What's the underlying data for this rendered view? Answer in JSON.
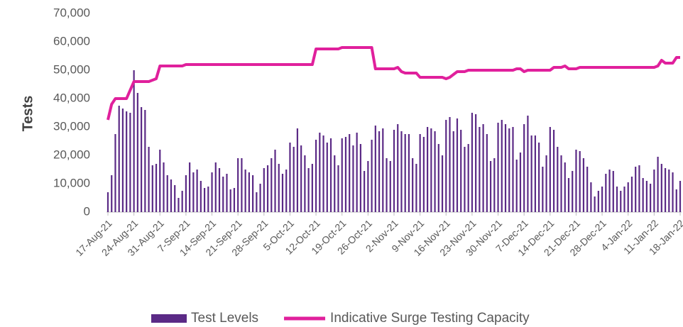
{
  "chart_data": {
    "type": "bar-line",
    "y_label": "Tests",
    "ylim": [
      0,
      70000
    ],
    "yticks": [
      0,
      {
        "value": 10000,
        "label": "10,000"
      },
      {
        "value": 20000,
        "label": "20,000"
      },
      {
        "value": 30000,
        "label": "30,000"
      },
      {
        "value": 40000,
        "label": "40,000"
      },
      {
        "value": 50000,
        "label": "50,000"
      },
      {
        "value": 60000,
        "label": "60,000"
      },
      {
        "value": 70000,
        "label": "70,000"
      }
    ],
    "grid": false,
    "legend": "bottom",
    "categories": [
      "17-Aug-21",
      null,
      null,
      null,
      null,
      null,
      null,
      "24-Aug-21",
      null,
      null,
      null,
      null,
      null,
      null,
      "31-Aug-21",
      null,
      null,
      null,
      null,
      null,
      null,
      "7-Sep-21",
      null,
      null,
      null,
      null,
      null,
      null,
      "14-Sep-21",
      null,
      null,
      null,
      null,
      null,
      null,
      "21-Sep-21",
      null,
      null,
      null,
      null,
      null,
      null,
      "28-Sep-21",
      null,
      null,
      null,
      null,
      null,
      null,
      "5-Oct-21",
      null,
      null,
      null,
      null,
      null,
      null,
      "12-Oct-21",
      null,
      null,
      null,
      null,
      null,
      null,
      "19-Oct-21",
      null,
      null,
      null,
      null,
      null,
      null,
      "26-Oct-21",
      null,
      null,
      null,
      null,
      null,
      null,
      "2-Nov-21",
      null,
      null,
      null,
      null,
      null,
      null,
      "9-Nov-21",
      null,
      null,
      null,
      null,
      null,
      null,
      "16-Nov-21",
      null,
      null,
      null,
      null,
      null,
      null,
      "23-Nov-21",
      null,
      null,
      null,
      null,
      null,
      null,
      "30-Nov-21",
      null,
      null,
      null,
      null,
      null,
      null,
      "7-Dec-21",
      null,
      null,
      null,
      null,
      null,
      null,
      "14-Dec-21",
      null,
      null,
      null,
      null,
      null,
      null,
      "21-Dec-21",
      null,
      null,
      null,
      null,
      null,
      null,
      "28-Dec-21",
      null,
      null,
      null,
      null,
      null,
      null,
      "4-Jan-22",
      null,
      null,
      null,
      null,
      null,
      null,
      "11-Jan-22",
      null,
      null,
      null,
      null,
      null,
      null,
      "18-Jan-22"
    ],
    "series": [
      {
        "name": "Test Levels",
        "kind": "bar",
        "color": "#5b2a86",
        "values": [
          7000,
          13000,
          27500,
          37500,
          36500,
          35500,
          35000,
          50000,
          42000,
          37000,
          36000,
          23000,
          16500,
          17000,
          22000,
          17500,
          13000,
          11500,
          9500,
          5000,
          7500,
          13000,
          17500,
          14000,
          15000,
          11000,
          8500,
          9000,
          14000,
          17500,
          15500,
          12500,
          13500,
          8000,
          8500,
          19000,
          19000,
          15000,
          14000,
          13000,
          7000,
          10000,
          15500,
          16500,
          19000,
          22000,
          17000,
          13500,
          15000,
          24500,
          23000,
          29500,
          23500,
          20000,
          15500,
          17000,
          25500,
          28000,
          27000,
          24500,
          26000,
          20000,
          16500,
          26000,
          26500,
          27500,
          23500,
          28000,
          24000,
          14500,
          18000,
          25500,
          30500,
          28500,
          29500,
          19000,
          18000,
          29000,
          31000,
          28500,
          27500,
          27500,
          19000,
          17000,
          27500,
          26500,
          30000,
          29500,
          28500,
          24000,
          20000,
          32500,
          33500,
          28500,
          33000,
          29000,
          23000,
          24000,
          35000,
          34500,
          30000,
          31000,
          27500,
          18000,
          19000,
          31500,
          32500,
          31000,
          29500,
          30000,
          18500,
          21000,
          31000,
          34000,
          27000,
          27000,
          24500,
          16000,
          20000,
          30000,
          29000,
          23000,
          20000,
          17500,
          12000,
          14500,
          22000,
          21500,
          19000,
          16000,
          10500,
          5500,
          7500,
          9000,
          13500,
          15000,
          14500,
          9000,
          7500,
          9000,
          10500,
          12500,
          16000,
          16500,
          12000,
          11000,
          10000,
          15000,
          19500,
          17000,
          15500,
          15000,
          14000,
          8000,
          11000
        ]
      },
      {
        "name": "Indicative Surge Testing Capacity",
        "kind": "line",
        "color": "#e0209c",
        "values": [
          32500,
          38000,
          40000,
          40000,
          40000,
          40000,
          43000,
          46000,
          46000,
          46000,
          46000,
          46000,
          46500,
          47000,
          51500,
          51500,
          51500,
          51500,
          51500,
          51500,
          51500,
          52000,
          52000,
          52000,
          52000,
          52000,
          52000,
          52000,
          52000,
          52000,
          52000,
          52000,
          52000,
          52000,
          52000,
          52000,
          52000,
          52000,
          52000,
          52000,
          52000,
          52000,
          52000,
          52000,
          52000,
          52000,
          52000,
          52000,
          52000,
          52000,
          52000,
          52000,
          52000,
          52000,
          52000,
          52000,
          57500,
          57500,
          57500,
          57500,
          57500,
          57500,
          57500,
          58000,
          58000,
          58000,
          58000,
          58000,
          58000,
          58000,
          58000,
          58000,
          50500,
          50500,
          50500,
          50500,
          50500,
          50500,
          51000,
          49500,
          49000,
          49000,
          49000,
          49000,
          47500,
          47500,
          47500,
          47500,
          47500,
          47500,
          47500,
          47000,
          47500,
          48500,
          49500,
          49500,
          49500,
          50000,
          50000,
          50000,
          50000,
          50000,
          50000,
          50000,
          50000,
          50000,
          50000,
          50000,
          50000,
          50000,
          50500,
          50500,
          49500,
          50000,
          50000,
          50000,
          50000,
          50000,
          50000,
          50000,
          51000,
          51000,
          51000,
          51500,
          50500,
          50500,
          50500,
          51000,
          51000,
          51000,
          51000,
          51000,
          51000,
          51000,
          51000,
          51000,
          51000,
          51000,
          51000,
          51000,
          51000,
          51000,
          51000,
          51000,
          51000,
          51000,
          51000,
          51000,
          51500,
          53500,
          52500,
          52500,
          52500,
          54500,
          54500
        ]
      }
    ]
  }
}
